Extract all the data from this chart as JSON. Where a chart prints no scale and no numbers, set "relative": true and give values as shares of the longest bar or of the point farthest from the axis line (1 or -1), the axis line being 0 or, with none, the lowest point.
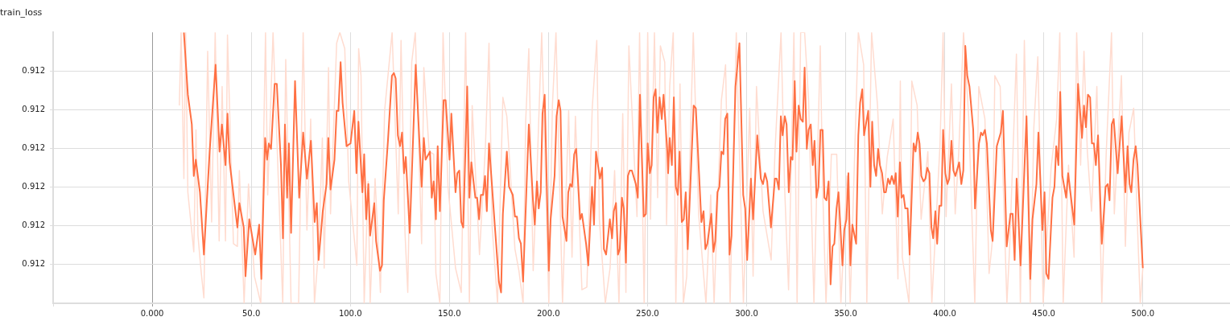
{
  "chart_data": {
    "type": "line",
    "title": "train_loss",
    "relative": true,
    "grid": true,
    "xlim": [
      -50,
      544
    ],
    "xticks": [
      {
        "value": -50,
        "label": null
      },
      {
        "value": 0,
        "label": "0.000"
      },
      {
        "value": 50,
        "label": "50.0"
      },
      {
        "value": 100,
        "label": "100.0"
      },
      {
        "value": 150,
        "label": "150.0"
      },
      {
        "value": 200,
        "label": "200.0"
      },
      {
        "value": 250,
        "label": "250.0"
      },
      {
        "value": 300,
        "label": "300.0"
      },
      {
        "value": 350,
        "label": "350.0"
      },
      {
        "value": 400,
        "label": "400.0"
      },
      {
        "value": 450,
        "label": "450.0"
      },
      {
        "value": 500,
        "label": "500.0"
      }
    ],
    "annotations": [
      "0.912",
      "0.912",
      "0.912",
      "0.912",
      "0.912",
      "0.912"
    ],
    "series": [
      {
        "color": "#ffdcd0",
        "x": [
          13.7,
          14.6,
          16.0,
          16.9,
          18.0,
          21.0,
          22.1,
          23.1,
          24.8,
          26.1,
          28.0,
          30.0,
          31.8,
          33.8,
          35.3,
          37.0,
          38.0,
          41.0,
          43.0,
          44.0,
          46.4,
          48.6,
          51.6,
          54.8,
          57.2,
          58.3,
          61.0,
          65.9,
          67.4,
          70.1,
          73.9,
          76.2,
          78.1,
          80.0,
          81.9,
          84.0,
          85.9,
          86.8,
          89.0,
          90.0,
          93.1,
          94.7,
          97.2,
          99.2,
          103.3,
          104.2,
          105.4,
          107.0,
          109.0,
          110.0,
          112.5,
          115.2,
          117.3,
          121.1,
          124.2,
          125.6,
          126.3,
          127.6,
          129.0,
          131.0,
          132.8,
          136.0,
          137.1,
          139.8,
          142.1,
          143.2,
          145.2,
          146.8,
          149.3,
          153.1,
          156.0,
          158.2,
          160.1,
          161.5,
          165.2,
          168.2,
          170.0,
          171.6,
          174.3,
          177.0,
          179.0,
          183.1,
          185.1,
          187.2,
          188.5,
          190.1,
          192.3,
          194.2,
          196.6,
          200.2,
          202.0,
          203.8,
          207.1,
          210.2,
          211.9,
          213.6,
          216.9,
          219.4,
          222.1,
          224.4,
          225.7,
          228.7,
          231.1,
          233.4,
          235.6,
          237.5,
          239.1,
          240.6,
          244.7,
          246.0,
          248.3,
          250.1,
          251.5,
          253.5,
          255.1,
          256.5,
          258.7,
          259.6,
          261.2,
          263.0,
          264.3,
          266.4,
          268.1,
          269.8,
          273.1,
          275.8,
          279.5,
          281.9,
          283.6,
          287.3,
          289.4,
          291.7,
          294.8,
          298.4,
          301.6,
          303.3,
          305.0,
          308.3,
          312.4,
          314.4,
          317.4,
          319.2,
          321.2,
          323.9,
          325.5,
          327.3,
          329.3,
          331.3,
          334.0,
          337.2,
          338.5,
          340.1,
          342.8,
          345.5,
          347.6,
          350.7,
          352.3,
          356.4,
          359.1,
          360.7,
          363.1,
          366.1,
          368.5,
          371.0,
          374.0,
          376.4,
          377.6,
          378.6,
          382.0,
          383.4,
          386.1,
          388.1,
          391.5,
          393.5,
          397.6,
          399.2,
          400.7,
          403.4,
          405.3,
          407.1,
          409.5,
          412.1,
          415.2,
          417.2,
          420.3,
          422.4,
          424.2,
          425.3,
          428.0,
          431.4,
          432.8,
          436.2,
          438.2,
          440.2,
          443.2,
          445.0,
          447.0,
          449.7,
          453.7,
          456.5,
          458.1,
          459.8,
          462.5,
          465.3,
          466.6,
          468.6,
          470.3,
          472.0,
          474.1,
          476.8,
          479.3,
          481.5,
          484.2,
          485.6,
          489.2,
          491.2,
          493.0,
          495.4,
          497.1,
          498.7,
          500
        ],
        "values": [
          0.73,
          1.0,
          0.46,
          1.0,
          0.41,
          0.19,
          0.64,
          0.25,
          0.11,
          0.02,
          0.93,
          0.3,
          1.0,
          0.23,
          0.8,
          0.23,
          0.99,
          0.22,
          0.21,
          0.49,
          0.0,
          0.44,
          0.1,
          0.0,
          1.0,
          0.4,
          1.0,
          0.0,
          0.9,
          0.0,
          0.0,
          1.0,
          0.27,
          0.68,
          0.0,
          0.2,
          0.61,
          0.13,
          0.87,
          0.33,
          0.96,
          1.0,
          0.94,
          0.45,
          0.14,
          0.94,
          0.84,
          0.0,
          0.45,
          0.0,
          0.46,
          0.04,
          0.71,
          1.0,
          0.33,
          0.97,
          0.73,
          0.26,
          0.04,
          0.89,
          1.0,
          0.22,
          0.87,
          0.56,
          0.55,
          0.11,
          0.0,
          1.0,
          0.43,
          0.13,
          0.04,
          1.0,
          0.0,
          0.73,
          0.18,
          0.58,
          0.96,
          0.28,
          0.0,
          0.76,
          0.69,
          0.2,
          0.12,
          0.0,
          0.67,
          0.94,
          0.12,
          0.48,
          1.0,
          0.0,
          0.73,
          1.0,
          0.0,
          0.71,
          0.17,
          0.69,
          0.05,
          0.06,
          0.72,
          0.97,
          0.31,
          0.0,
          0.13,
          0.49,
          0.0,
          0.7,
          0.04,
          0.95,
          0.32,
          1.0,
          0.0,
          1.0,
          0.31,
          1.0,
          0.39,
          0.95,
          0.89,
          0.29,
          0.8,
          1.0,
          0.0,
          0.81,
          0.0,
          0.1,
          1.0,
          0.33,
          0.0,
          0.4,
          0.0,
          0.75,
          0.88,
          0.0,
          1.0,
          0.0,
          0.72,
          0.1,
          0.8,
          0.34,
          0.16,
          0.57,
          1.0,
          0.43,
          0.05,
          1.0,
          0.0,
          1.0,
          1.0,
          0.75,
          0.0,
          0.95,
          0.4,
          0.0,
          0.55,
          0.55,
          0.0,
          0.47,
          0.0,
          1.0,
          0.88,
          0.0,
          1.0,
          0.73,
          0.33,
          0.54,
          0.68,
          0.09,
          0.82,
          0.17,
          0.0,
          0.82,
          0.73,
          0.31,
          0.56,
          0.0,
          0.58,
          1.0,
          0.32,
          0.81,
          0.33,
          0.56,
          1.0,
          0.69,
          0.0,
          0.8,
          0.68,
          0.11,
          0.24,
          0.84,
          0.8,
          0.0,
          0.21,
          0.92,
          0.0,
          0.97,
          0.0,
          0.65,
          0.91,
          0.0,
          0.5,
          0.68,
          1.0,
          0.0,
          0.51,
          0.17,
          1.0,
          0.51,
          0.93,
          0.56,
          0.34,
          0.8,
          0.0,
          0.55,
          1.0,
          0.33,
          0.84,
          0.21,
          0.63,
          0.72,
          0.33,
          0.0,
          0.13
        ]
      },
      {
        "color": "#ff7043",
        "x": [
          16,
          18.0,
          20.0,
          21.0,
          22.0,
          24.1,
          26.1,
          29.0,
          32.0,
          34.0,
          35.2,
          37.0,
          38.0,
          39.1,
          43.0,
          44.0,
          46.2,
          47.1,
          49.0,
          52.0,
          54.0,
          55.1,
          57.0,
          58.0,
          58.9,
          60.0,
          61.8,
          62.9,
          65.0,
          66.0,
          67.0,
          68.1,
          69.0,
          70.1,
          72.1,
          74.2,
          76.2,
          78.1,
          80.1,
          82.0,
          83.1,
          84.0,
          86.1,
          88.0,
          88.9,
          90.0,
          92.0,
          93.1,
          94.0,
          95.1,
          96.1,
          98.1,
          100.1,
          102.0,
          103.1,
          104.1,
          106.1,
          107.0,
          108.0,
          109.1,
          110.0,
          112.1,
          113.0,
          115.0,
          116.0,
          116.9,
          119.0,
          121.0,
          122.0,
          122.9,
          124.0,
          125.1,
          126.1,
          127.1,
          128.0,
          130.0,
          133.0,
          136.0,
          137.1,
          138.0,
          140.2,
          141.1,
          142.1,
          143.2,
          144.1,
          145.2,
          147.1,
          148.1,
          150.1,
          151.0,
          153.1,
          154.0,
          155.0,
          156.0,
          157.0,
          159.0,
          160.1,
          161.1,
          163.1,
          164.0,
          165.0,
          165.9,
          167.0,
          168.0,
          168.9,
          170.0,
          173.0,
          175.0,
          176.1,
          177.0,
          179.0,
          180.1,
          182.0,
          183.1,
          184.1,
          185.1,
          186.1,
          187.2,
          190.1,
          192.2,
          193.1,
          194.2,
          195.1,
          196.1,
          197.0,
          198.1,
          200.2,
          201.1,
          203.1,
          204.1,
          205.2,
          206.1,
          207.1,
          209.1,
          210.0,
          211.0,
          211.9,
          213.0,
          214.0,
          216.0,
          216.9,
          219.0,
          220.1,
          222.0,
          223.0,
          224.0,
          226.0,
          227.1,
          228.0,
          229.1,
          231.0,
          232.1,
          233.0,
          234.1,
          235.1,
          236.0,
          237.1,
          238.0,
          239.1,
          240.1,
          241.0,
          242.1,
          244.1,
          245.1,
          246.2,
          248.1,
          249.2,
          250.1,
          251.2,
          252.1,
          253.1,
          254.1,
          255.0,
          256.1,
          257.2,
          258.1,
          260.0,
          260.4,
          261.2,
          262.3,
          263.3,
          264.3,
          265.3,
          266.2,
          267.3,
          268.3,
          269.3,
          270.3,
          273.3,
          274.4,
          277.2,
          278.3,
          279.2,
          280.2,
          282.2,
          283.3,
          284.2,
          285.3,
          286.3,
          287.3,
          288.3,
          289.2,
          290.3,
          291.4,
          292.4,
          294.4,
          296.4,
          298.3,
          299.3,
          300.3,
          302.2,
          303.3,
          305.4,
          307.2,
          308.3,
          309.3,
          310.4,
          312.3,
          314.3,
          315.2,
          316.3,
          317.3,
          318.2,
          319.3,
          320.2,
          321.3,
          322.3,
          323.2,
          324.3,
          325.2,
          326.3,
          327.3,
          328.4,
          329.3,
          330.4,
          331.3,
          332.4,
          333.4,
          334.3,
          335.3,
          336.3,
          337.3,
          338.4,
          339.3,
          340.3,
          341.4,
          342.4,
          343.4,
          344.3,
          345.4,
          346.4,
          348.4,
          349.3,
          350.4,
          351.4,
          352.4,
          353.4,
          355.3,
          356.4,
          357.3,
          358.4,
          359.3,
          361.4,
          362.5,
          363.4,
          364.4,
          365.4,
          366.4,
          367.3,
          368.4,
          369.4,
          370.3,
          371.4,
          372.3,
          373.3,
          374.4,
          375.3,
          376.3,
          377.4,
          378.2,
          379.2,
          380.1,
          381.3,
          382.3,
          384.3,
          385.3,
          386.4,
          387.3,
          388.2,
          389.3,
          390.3,
          391.2,
          392.3,
          393.3,
          394.2,
          395.3,
          396.2,
          397.3,
          398.3,
          399.2,
          400.3,
          401.4,
          402.3,
          403.4,
          404.4,
          405.4,
          407.3,
          408.4,
          409.4,
          410.4,
          411.4,
          412.5,
          414.4,
          415.3,
          417.3,
          418.3,
          419.2,
          420.3,
          421.3,
          423.3,
          424.2,
          426.3,
          428.3,
          429.4,
          431.3,
          433.2,
          434.3,
          435.3,
          436.3,
          438.3,
          441.3,
          443.2,
          444.3,
          446.3,
          447.3,
          449.3,
          450.4,
          451.3,
          452.4,
          454.4,
          455.4,
          456.3,
          457.4,
          458.3,
          459.4,
          461.3,
          462.3,
          465.4,
          467.3,
          469.3,
          470.3,
          471.3,
          472.3,
          473.4,
          474.3,
          475.3,
          476.3,
          477.4,
          479.3,
          481.2,
          482.3,
          483.2,
          484.3,
          485.3,
          487.3,
          489.3,
          491.2,
          492.3,
          493.3,
          494.2,
          495.3,
          496.4,
          497.3,
          500
        ],
        "values": [
          1.0,
          0.77,
          0.66,
          0.47,
          0.53,
          0.41,
          0.18,
          0.56,
          0.88,
          0.56,
          0.66,
          0.51,
          0.7,
          0.52,
          0.28,
          0.37,
          0.28,
          0.1,
          0.31,
          0.18,
          0.29,
          0.09,
          0.61,
          0.53,
          0.59,
          0.57,
          0.81,
          0.81,
          0.51,
          0.24,
          0.66,
          0.39,
          0.59,
          0.26,
          0.82,
          0.39,
          0.63,
          0.46,
          0.6,
          0.3,
          0.37,
          0.16,
          0.34,
          0.44,
          0.61,
          0.42,
          0.53,
          0.71,
          0.71,
          0.89,
          0.74,
          0.58,
          0.59,
          0.71,
          0.48,
          0.67,
          0.41,
          0.55,
          0.31,
          0.44,
          0.25,
          0.37,
          0.23,
          0.12,
          0.14,
          0.38,
          0.6,
          0.84,
          0.85,
          0.83,
          0.62,
          0.58,
          0.63,
          0.48,
          0.54,
          0.26,
          0.88,
          0.43,
          0.61,
          0.53,
          0.56,
          0.39,
          0.45,
          0.31,
          0.58,
          0.34,
          0.75,
          0.75,
          0.53,
          0.7,
          0.41,
          0.48,
          0.49,
          0.3,
          0.28,
          0.8,
          0.39,
          0.52,
          0.39,
          0.39,
          0.31,
          0.4,
          0.4,
          0.47,
          0.34,
          0.59,
          0.28,
          0.08,
          0.04,
          0.33,
          0.56,
          0.43,
          0.4,
          0.32,
          0.32,
          0.24,
          0.22,
          0.08,
          0.66,
          0.38,
          0.29,
          0.45,
          0.35,
          0.41,
          0.7,
          0.77,
          0.12,
          0.31,
          0.47,
          0.69,
          0.75,
          0.71,
          0.32,
          0.23,
          0.41,
          0.44,
          0.43,
          0.55,
          0.57,
          0.31,
          0.33,
          0.22,
          0.14,
          0.43,
          0.29,
          0.56,
          0.46,
          0.5,
          0.2,
          0.18,
          0.31,
          0.24,
          0.34,
          0.37,
          0.18,
          0.2,
          0.39,
          0.35,
          0.15,
          0.47,
          0.49,
          0.49,
          0.44,
          0.39,
          0.77,
          0.32,
          0.33,
          0.59,
          0.48,
          0.51,
          0.76,
          0.79,
          0.63,
          0.76,
          0.68,
          0.77,
          0.56,
          0.48,
          0.61,
          0.51,
          0.76,
          0.43,
          0.4,
          0.56,
          0.3,
          0.31,
          0.41,
          0.2,
          0.73,
          0.72,
          0.3,
          0.34,
          0.2,
          0.22,
          0.33,
          0.19,
          0.23,
          0.41,
          0.43,
          0.56,
          0.55,
          0.68,
          0.7,
          0.18,
          0.25,
          0.8,
          0.96,
          0.4,
          0.35,
          0.16,
          0.46,
          0.31,
          0.62,
          0.46,
          0.44,
          0.48,
          0.45,
          0.28,
          0.46,
          0.46,
          0.42,
          0.69,
          0.62,
          0.69,
          0.66,
          0.41,
          0.54,
          0.53,
          0.82,
          0.56,
          0.73,
          0.68,
          0.67,
          0.87,
          0.57,
          0.64,
          0.66,
          0.51,
          0.6,
          0.39,
          0.43,
          0.64,
          0.64,
          0.39,
          0.38,
          0.45,
          0.07,
          0.21,
          0.22,
          0.35,
          0.41,
          0.14,
          0.27,
          0.31,
          0.48,
          0.14,
          0.29,
          0.22,
          0.62,
          0.74,
          0.79,
          0.62,
          0.71,
          0.43,
          0.67,
          0.51,
          0.47,
          0.57,
          0.51,
          0.48,
          0.41,
          0.41,
          0.46,
          0.44,
          0.47,
          0.44,
          0.48,
          0.32,
          0.52,
          0.39,
          0.4,
          0.35,
          0.35,
          0.18,
          0.59,
          0.56,
          0.63,
          0.59,
          0.47,
          0.45,
          0.46,
          0.5,
          0.48,
          0.28,
          0.24,
          0.34,
          0.22,
          0.36,
          0.36,
          0.64,
          0.48,
          0.44,
          0.46,
          0.6,
          0.49,
          0.47,
          0.52,
          0.44,
          0.49,
          0.95,
          0.84,
          0.8,
          0.64,
          0.35,
          0.59,
          0.63,
          0.62,
          0.64,
          0.59,
          0.27,
          0.23,
          0.58,
          0.63,
          0.71,
          0.21,
          0.33,
          0.33,
          0.16,
          0.46,
          0.14,
          0.69,
          0.09,
          0.31,
          0.44,
          0.63,
          0.27,
          0.41,
          0.11,
          0.09,
          0.39,
          0.43,
          0.58,
          0.51,
          0.78,
          0.47,
          0.39,
          0.48,
          0.29,
          0.81,
          0.61,
          0.73,
          0.65,
          0.77,
          0.76,
          0.59,
          0.59,
          0.51,
          0.62,
          0.22,
          0.43,
          0.44,
          0.38,
          0.66,
          0.68,
          0.48,
          0.69,
          0.41,
          0.58,
          0.44,
          0.41,
          0.53,
          0.58,
          0.51,
          0.13
        ]
      }
    ]
  }
}
